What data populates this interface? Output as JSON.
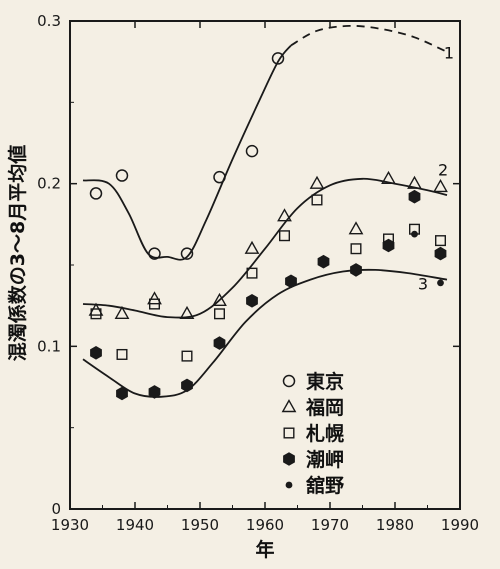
{
  "chart_data": {
    "type": "scatter",
    "xlabel": "年",
    "ylabel": "混濁係数の3〜8月平均値",
    "xlim": [
      1930,
      1990
    ],
    "ylim": [
      0,
      0.3
    ],
    "x_ticks": [
      "1930",
      "1940",
      "1950",
      "1960",
      "1970",
      "1980",
      "1990"
    ],
    "y_ticks": [
      "0",
      "0.1",
      "0.2",
      "0.3"
    ],
    "grid": false,
    "legend_position": "bottom-right",
    "series": [
      {
        "name": "東京",
        "marker": "open-circle",
        "points": [
          [
            1934,
            0.194
          ],
          [
            1938,
            0.205
          ],
          [
            1943,
            0.157
          ],
          [
            1948,
            0.157
          ],
          [
            1953,
            0.204
          ],
          [
            1958,
            0.22
          ],
          [
            1962,
            0.277
          ]
        ]
      },
      {
        "name": "福岡",
        "marker": "open-triangle",
        "points": [
          [
            1934,
            0.122
          ],
          [
            1938,
            0.12
          ],
          [
            1943,
            0.129
          ],
          [
            1948,
            0.12
          ],
          [
            1953,
            0.128
          ],
          [
            1958,
            0.16
          ],
          [
            1963,
            0.18
          ],
          [
            1968,
            0.2
          ],
          [
            1974,
            0.172
          ],
          [
            1979,
            0.203
          ],
          [
            1983,
            0.2
          ],
          [
            1987,
            0.198
          ]
        ]
      },
      {
        "name": "札幌",
        "marker": "open-square",
        "points": [
          [
            1934,
            0.12
          ],
          [
            1938,
            0.095
          ],
          [
            1943,
            0.126
          ],
          [
            1948,
            0.094
          ],
          [
            1953,
            0.12
          ],
          [
            1958,
            0.145
          ],
          [
            1963,
            0.168
          ],
          [
            1968,
            0.19
          ],
          [
            1974,
            0.16
          ],
          [
            1979,
            0.166
          ],
          [
            1983,
            0.172
          ],
          [
            1987,
            0.165
          ]
        ]
      },
      {
        "name": "潮岬",
        "marker": "filled-hexagon",
        "points": [
          [
            1934,
            0.096
          ],
          [
            1938,
            0.071
          ],
          [
            1943,
            0.072
          ],
          [
            1948,
            0.076
          ],
          [
            1953,
            0.102
          ],
          [
            1958,
            0.128
          ],
          [
            1964,
            0.14
          ],
          [
            1969,
            0.152
          ],
          [
            1974,
            0.147
          ],
          [
            1979,
            0.162
          ],
          [
            1983,
            0.192
          ],
          [
            1987,
            0.157
          ]
        ]
      },
      {
        "name": "舘野",
        "marker": "filled-dot",
        "points": [
          [
            1983,
            0.169
          ],
          [
            1987,
            0.139
          ]
        ]
      }
    ],
    "curves": [
      {
        "label": "1",
        "points": [
          [
            1932,
            0.202
          ],
          [
            1936,
            0.2
          ],
          [
            1939,
            0.182
          ],
          [
            1942,
            0.157
          ],
          [
            1945,
            0.155
          ],
          [
            1948,
            0.155
          ],
          [
            1951,
            0.178
          ],
          [
            1955,
            0.215
          ],
          [
            1959,
            0.25
          ],
          [
            1962,
            0.275
          ],
          [
            1964,
            0.285
          ]
        ],
        "dashed_points": [
          [
            1964,
            0.285
          ],
          [
            1968,
            0.294
          ],
          [
            1973,
            0.297
          ],
          [
            1978,
            0.295
          ],
          [
            1983,
            0.29
          ],
          [
            1988,
            0.281
          ]
        ]
      },
      {
        "label": "2",
        "points": [
          [
            1932,
            0.126
          ],
          [
            1936,
            0.125
          ],
          [
            1940,
            0.122
          ],
          [
            1945,
            0.118
          ],
          [
            1950,
            0.12
          ],
          [
            1955,
            0.136
          ],
          [
            1960,
            0.16
          ],
          [
            1965,
            0.185
          ],
          [
            1970,
            0.199
          ],
          [
            1975,
            0.203
          ],
          [
            1980,
            0.2
          ],
          [
            1985,
            0.196
          ],
          [
            1988,
            0.193
          ]
        ]
      },
      {
        "label": "3",
        "points": [
          [
            1932,
            0.092
          ],
          [
            1936,
            0.081
          ],
          [
            1940,
            0.071
          ],
          [
            1944,
            0.069
          ],
          [
            1948,
            0.073
          ],
          [
            1952,
            0.09
          ],
          [
            1957,
            0.115
          ],
          [
            1962,
            0.132
          ],
          [
            1967,
            0.141
          ],
          [
            1972,
            0.146
          ],
          [
            1977,
            0.147
          ],
          [
            1982,
            0.145
          ],
          [
            1988,
            0.141
          ]
        ]
      }
    ]
  }
}
